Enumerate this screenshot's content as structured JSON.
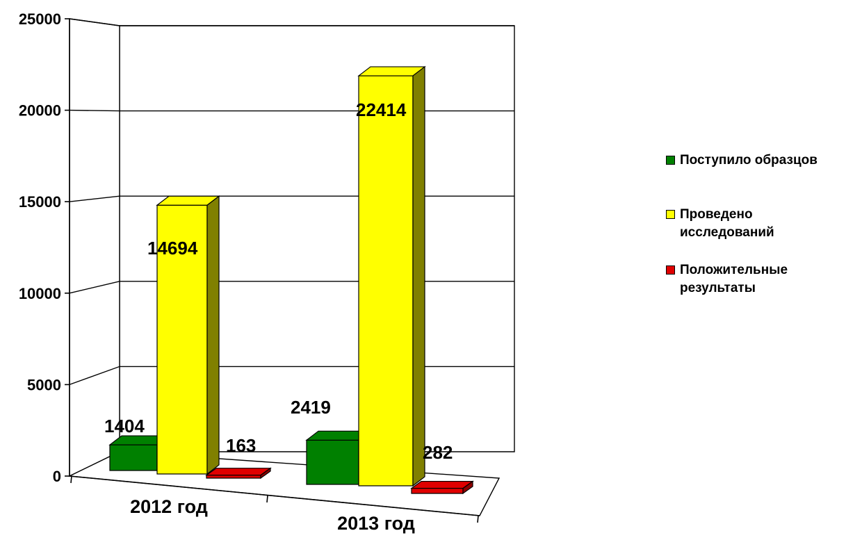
{
  "chart_data": {
    "type": "bar",
    "three_d": true,
    "categories": [
      "2012 год",
      "2013 год"
    ],
    "series": [
      {
        "name": "Поступило образцов",
        "values": [
          1404,
          2419
        ],
        "color": "#008000",
        "side_color": "#005400"
      },
      {
        "name": "Проведено исследований",
        "values": [
          14694,
          22414
        ],
        "color": "#ffff00",
        "side_color": "#808000"
      },
      {
        "name": "Положительные результаты",
        "values": [
          163,
          282
        ],
        "color": "#e00000",
        "side_color": "#900000"
      }
    ],
    "data_labels": [
      [
        "1404",
        "2419"
      ],
      [
        "14694",
        "22414"
      ],
      [
        "163",
        "282"
      ]
    ],
    "y_ticks": [
      "0",
      "5000",
      "10000",
      "15000",
      "20000",
      "25000"
    ],
    "ylim": [
      0,
      25000
    ],
    "grid": true,
    "legend_position": "right"
  }
}
